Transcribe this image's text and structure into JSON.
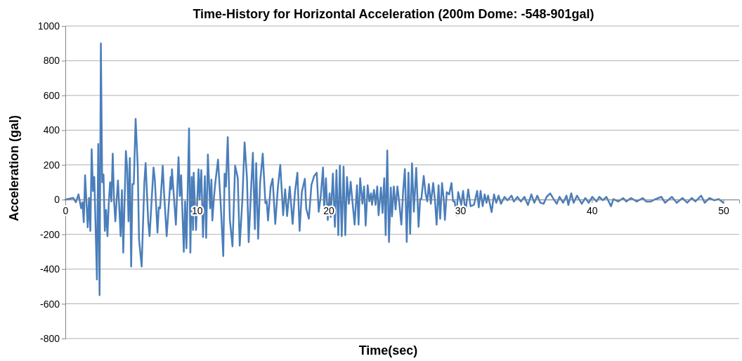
{
  "chart_data": {
    "type": "line",
    "title": "Time-History for Horizontal Acceleration (200m Dome: -548-901gal)",
    "xlabel": "Time(sec)",
    "ylabel": "Acceleration (gal)",
    "xlim": [
      0,
      51.2
    ],
    "xticks": [
      0,
      10,
      20,
      30,
      40,
      50
    ],
    "ylim": [
      -800,
      1000
    ],
    "yticks": [
      -800,
      -600,
      -400,
      -200,
      0,
      200,
      400,
      600,
      800,
      1000
    ],
    "grid": "y",
    "line_style": "solid",
    "series": [
      {
        "color": "#4a7ebb",
        "x": [
          0,
          0.6,
          0.8,
          1.0,
          1.2,
          1.3,
          1.4,
          1.5,
          1.7,
          1.8,
          1.9,
          2.0,
          2.1,
          2.2,
          2.4,
          2.5,
          2.6,
          2.7,
          2.8,
          2.9,
          3.0,
          3.1,
          3.2,
          3.3,
          3.4,
          3.5,
          3.6,
          3.7,
          3.8,
          3.9,
          4.0,
          4.2,
          4.3,
          4.4,
          4.6,
          4.7,
          4.8,
          4.9,
          5.0,
          5.1,
          5.2,
          5.34,
          5.5,
          5.6,
          5.8,
          6.0,
          6.1,
          6.3,
          6.4,
          6.7,
          6.8,
          7.0,
          7.1,
          7.2,
          7.4,
          7.5,
          7.7,
          8.0,
          8.05,
          8.1,
          8.4,
          8.6,
          8.7,
          8.8,
          9.0,
          9.1,
          9.2,
          9.4,
          9.5,
          9.6,
          9.7,
          9.75,
          9.93,
          10.12,
          10.2,
          10.33,
          10.46,
          10.6,
          10.7,
          10.83,
          11.0,
          11.1,
          11.17,
          11.3,
          11.4,
          11.6,
          11.8,
          12.0,
          12.1,
          12.2,
          12.34,
          12.5,
          12.7,
          12.9,
          13.1,
          13.25,
          13.45,
          13.62,
          13.8,
          13.93,
          14.1,
          14.25,
          14.4,
          14.5,
          14.65,
          14.8,
          15.0,
          15.2,
          15.3,
          15.4,
          15.6,
          15.75,
          15.95,
          16.15,
          16.33,
          16.55,
          16.7,
          16.85,
          17.05,
          17.27,
          17.45,
          17.63,
          17.8,
          17.97,
          18.2,
          18.3,
          18.5,
          18.7,
          18.9,
          19.1,
          19.25,
          19.4,
          19.58,
          19.67,
          19.8,
          19.94,
          20.08,
          20.17,
          20.33,
          20.48,
          20.6,
          20.74,
          20.86,
          21.0,
          21.14,
          21.27,
          21.4,
          21.54,
          21.68,
          21.8,
          21.98,
          22.16,
          22.28,
          22.4,
          22.57,
          22.7,
          22.82,
          22.97,
          23.1,
          23.23,
          23.3,
          23.45,
          23.57,
          23.7,
          23.8,
          23.98,
          24.1,
          24.23,
          24.34,
          24.46,
          24.59,
          24.73,
          24.82,
          24.96,
          25.09,
          25.23,
          25.36,
          25.53,
          25.66,
          25.8,
          25.94,
          26.07,
          26.2,
          26.34,
          26.48,
          26.66,
          26.84,
          26.96,
          27.05,
          27.23,
          27.38,
          27.5,
          27.62,
          27.77,
          27.95,
          28.09,
          28.21,
          28.36,
          28.48,
          28.62,
          28.75,
          28.84,
          28.98,
          29.16,
          29.34,
          29.46,
          29.58,
          29.71,
          29.85,
          30.08,
          30.22,
          30.4,
          30.61,
          30.79,
          31.05,
          31.29,
          31.41,
          31.55,
          31.71,
          31.86,
          32.0,
          32.12,
          32.39,
          32.57,
          32.74,
          32.92,
          33.1,
          33.37,
          33.6,
          33.9,
          34.08,
          34.35,
          34.61,
          34.88,
          35.15,
          35.41,
          35.63,
          35.86,
          36.09,
          36.34,
          36.57,
          36.84,
          37.1,
          37.34,
          37.55,
          37.82,
          38.08,
          38.22,
          38.44,
          38.62,
          38.88,
          39.24,
          39.51,
          39.77,
          40.04,
          40.36,
          40.57,
          40.84,
          41.11,
          41.46,
          41.64,
          42.0,
          42.39,
          42.62,
          42.98,
          43.42,
          43.87,
          44.13,
          44.49,
          44.85,
          45.29,
          45.56,
          46.09,
          46.45,
          46.89,
          47.25,
          47.6,
          47.87,
          48.31,
          48.58,
          48.94,
          49.29,
          49.65,
          50.0
        ],
        "values": [
          0,
          10,
          -15,
          30,
          -50,
          -15,
          -130,
          140,
          -160,
          10,
          -180,
          290,
          50,
          130,
          -460,
          320,
          -550,
          900,
          100,
          145,
          -180,
          -60,
          -210,
          -20,
          100,
          -10,
          265,
          -5,
          -125,
          0,
          110,
          -210,
          55,
          -305,
          280,
          180,
          -125,
          240,
          -385,
          90,
          90,
          465,
          190,
          -230,
          -385,
          95,
          210,
          -130,
          -210,
          185,
          115,
          -190,
          -45,
          -50,
          195,
          40,
          -210,
          130,
          60,
          175,
          -145,
          245,
          20,
          140,
          -300,
          -10,
          -280,
          410,
          -305,
          130,
          -175,
          155,
          -175,
          175,
          0,
          170,
          -215,
          135,
          -220,
          260,
          -50,
          115,
          -120,
          20,
          100,
          230,
          -20,
          -325,
          150,
          75,
          360,
          -115,
          -270,
          195,
          125,
          -265,
          0,
          330,
          125,
          -245,
          40,
          270,
          -170,
          210,
          -225,
          100,
          265,
          -20,
          -10,
          -120,
          75,
          120,
          -140,
          70,
          200,
          -90,
          60,
          -95,
          75,
          -140,
          45,
          155,
          -180,
          45,
          120,
          -50,
          -110,
          85,
          135,
          155,
          -70,
          15,
          185,
          -64,
          123,
          -117,
          36,
          -100,
          150,
          -157,
          170,
          -204,
          196,
          -210,
          190,
          -204,
          130,
          -24,
          103,
          0,
          -144,
          83,
          -144,
          123,
          -24,
          76,
          -150,
          83,
          -10,
          36,
          -30,
          56,
          -30,
          76,
          -90,
          70,
          -77,
          123,
          -204,
          283,
          -244,
          70,
          -97,
          76,
          -57,
          76,
          -10,
          -144,
          43,
          176,
          -244,
          156,
          -197,
          209,
          -70,
          183,
          -157,
          3,
          3,
          136,
          30,
          -10,
          90,
          -24,
          96,
          -10,
          -144,
          83,
          -110,
          96,
          3,
          -117,
          43,
          30,
          96,
          -10,
          -10,
          -90,
          43,
          -30,
          50,
          -72,
          59,
          -38,
          -30,
          50,
          -45,
          50,
          -38,
          30,
          -18,
          23,
          -72,
          30,
          -18,
          23,
          -24,
          16,
          -4,
          23,
          -11,
          16,
          -11,
          16,
          -31,
          30,
          -18,
          23,
          -18,
          -24,
          16,
          36,
          3,
          -24,
          16,
          -18,
          23,
          -31,
          36,
          -18,
          23,
          -24,
          9,
          -18,
          16,
          -11,
          16,
          -4,
          16,
          -38,
          3,
          -11,
          9,
          -11,
          9,
          -11,
          9,
          -11,
          -11,
          3,
          16,
          -18,
          16,
          -18,
          9,
          -18,
          9,
          -11,
          23,
          -18,
          9,
          -4,
          3,
          -18
        ]
      }
    ]
  }
}
